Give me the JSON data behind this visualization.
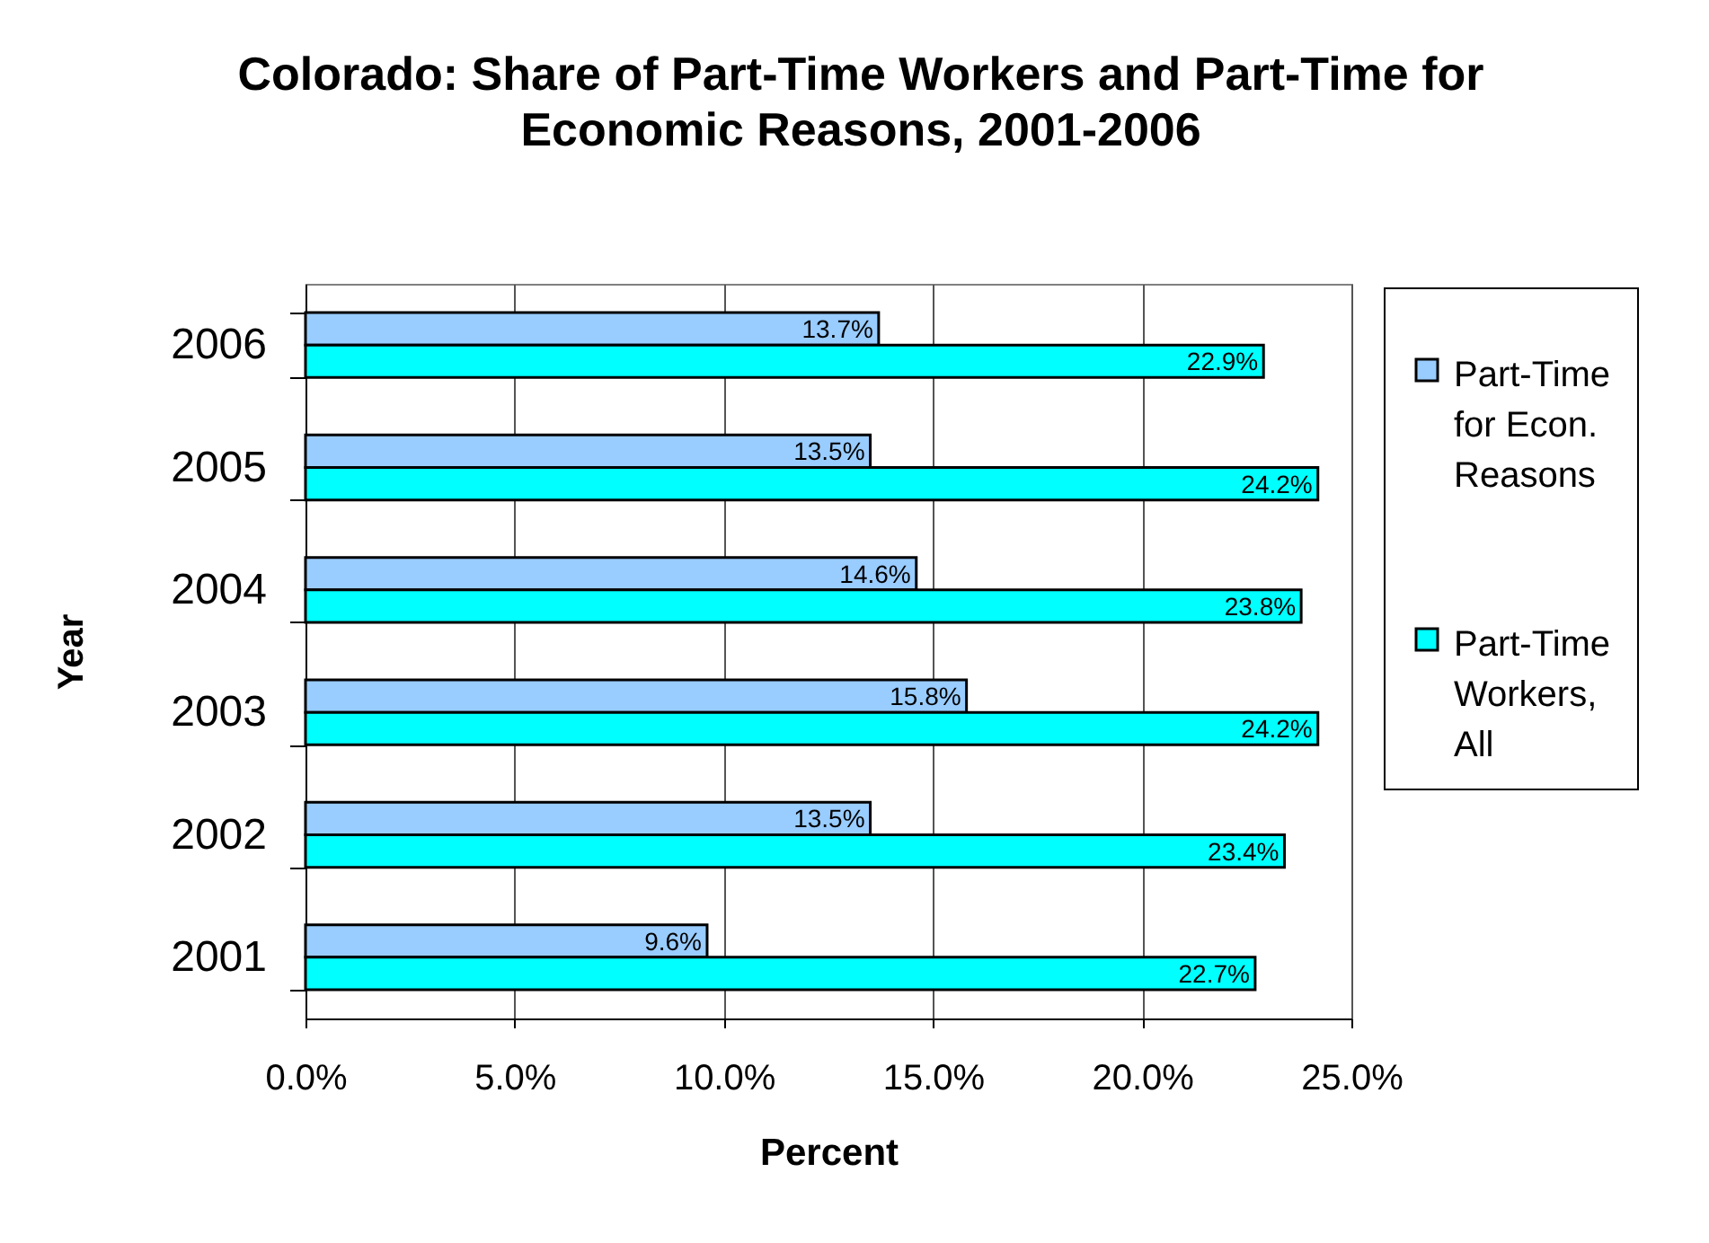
{
  "chart_data": {
    "type": "bar",
    "orientation": "horizontal",
    "title": "Colorado: Share of Part-Time Workers and Part-Time for Economic Reasons, 2001-2006",
    "xlabel": "Percent",
    "ylabel": "Year",
    "categories": [
      "2006",
      "2005",
      "2004",
      "2003",
      "2002",
      "2001"
    ],
    "series": [
      {
        "name": "Part-Time for Econ. Reasons",
        "color": "#99ccff",
        "values": [
          13.7,
          13.5,
          14.6,
          15.8,
          13.5,
          9.6
        ],
        "value_labels": [
          "13.7%",
          "13.5%",
          "14.6%",
          "15.8%",
          "13.5%",
          "9.6%"
        ]
      },
      {
        "name": "Part-Time Workers, All",
        "color": "#00ffff",
        "values": [
          22.9,
          24.2,
          23.8,
          24.2,
          23.4,
          22.7
        ],
        "value_labels": [
          "22.9%",
          "24.2%",
          "23.8%",
          "24.2%",
          "23.4%",
          "22.7%"
        ]
      }
    ],
    "xlim": [
      0,
      25
    ],
    "xticks": [
      {
        "value": 0,
        "label": "0.0%"
      },
      {
        "value": 5,
        "label": "5.0%"
      },
      {
        "value": 10,
        "label": "10.0%"
      },
      {
        "value": 15,
        "label": "15.0%"
      },
      {
        "value": 20,
        "label": "20.0%"
      },
      {
        "value": 25,
        "label": "25.0%"
      }
    ],
    "grid": "x",
    "legend": "right"
  }
}
